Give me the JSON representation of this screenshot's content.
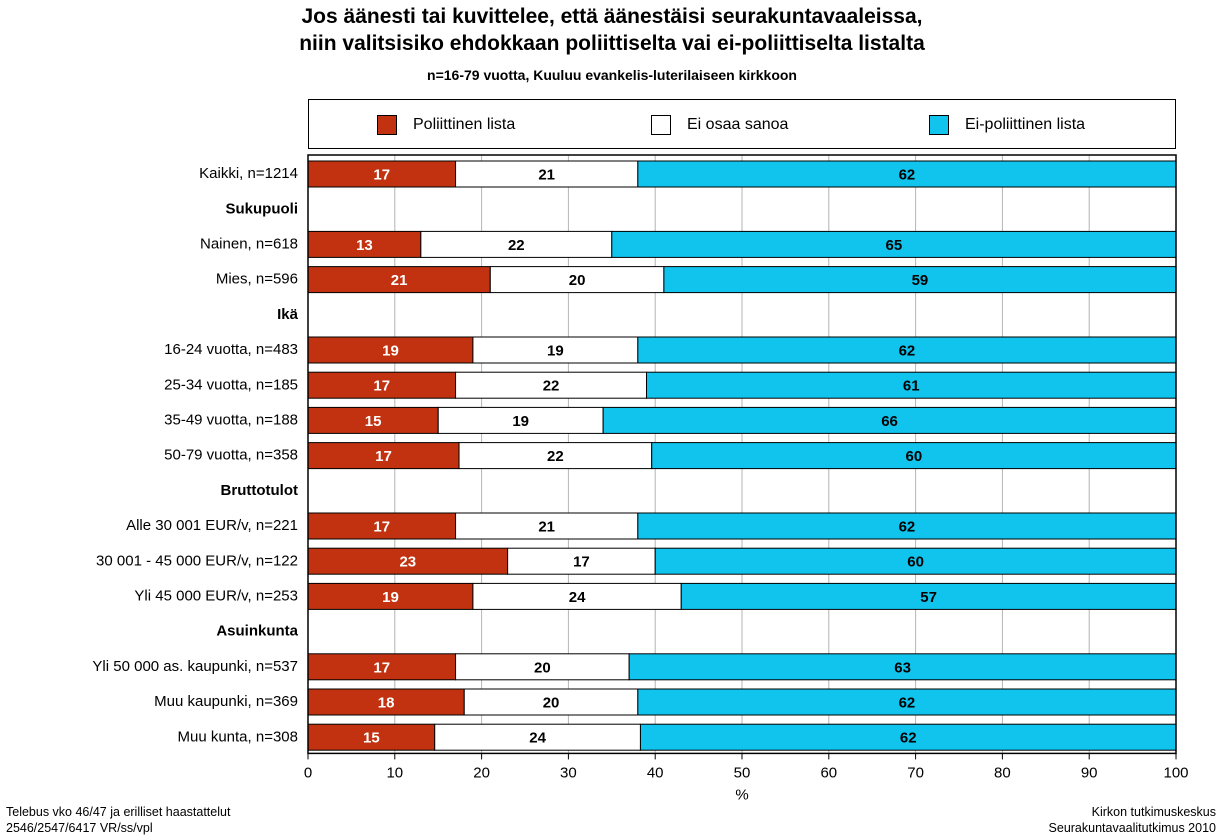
{
  "title_line1": "Jos äänesti tai kuvittelee, että äänestäisi seurakuntavaaleissa,",
  "title_line2": "niin valitsisiko ehdokkaan poliittiselta vai ei-poliittiselta listalta",
  "subtitle": "n=16-79 vuotta, Kuuluu evankelis-luterilaiseen kirkkoon",
  "footer_left": [
    "Telebus vko 46/47 ja erilliset haastattelut",
    "2546/2547/6417 VR/ss/vpl"
  ],
  "footer_right": [
    "Kirkon tutkimuskeskus",
    "Seurakuntavaalitutkimus 2010"
  ],
  "chart_data": {
    "type": "bar",
    "orientation": "horizontal",
    "stacked": true,
    "xlabel": "%",
    "xlim": [
      0,
      100
    ],
    "xticks": [
      0,
      10,
      20,
      30,
      40,
      50,
      60,
      70,
      80,
      90,
      100
    ],
    "grid": "vertical",
    "legend_position": "top",
    "series": [
      {
        "name": "Poliittinen lista",
        "color": "#c23210",
        "label_color": "#ffffff"
      },
      {
        "name": "Ei osaa sanoa",
        "color": "#ffffff",
        "label_color": "#000000"
      },
      {
        "name": "Ei-poliittinen lista",
        "color": "#11c4ee",
        "label_color": "#000000"
      }
    ],
    "rows": [
      {
        "label": "Kaikki, n=1214",
        "values": [
          17,
          21,
          62
        ],
        "ends": [
          17,
          38
        ]
      },
      {
        "label": "Sukupuoli",
        "header": true
      },
      {
        "label": "Nainen, n=618",
        "values": [
          13,
          22,
          65
        ],
        "ends": [
          13,
          35
        ]
      },
      {
        "label": "Mies, n=596",
        "values": [
          21,
          20,
          59
        ],
        "ends": [
          21,
          41
        ]
      },
      {
        "label": "Ikä",
        "header": true
      },
      {
        "label": "16-24 vuotta, n=483",
        "values": [
          19,
          19,
          62
        ],
        "ends": [
          19,
          38
        ]
      },
      {
        "label": "25-34 vuotta, n=185",
        "values": [
          17,
          22,
          61
        ],
        "ends": [
          17,
          39
        ]
      },
      {
        "label": "35-49 vuotta, n=188",
        "values": [
          15,
          19,
          66
        ],
        "ends": [
          15,
          34
        ]
      },
      {
        "label": "50-79 vuotta, n=358",
        "values": [
          17,
          22,
          60
        ],
        "ends": [
          17.4,
          39.6
        ]
      },
      {
        "label": "Bruttotulot",
        "header": true
      },
      {
        "label": "Alle 30 001 EUR/v, n=221",
        "values": [
          17,
          21,
          62
        ],
        "ends": [
          17,
          38
        ]
      },
      {
        "label": "30 001 - 45 000 EUR/v, n=122",
        "values": [
          23,
          17,
          60
        ],
        "ends": [
          23,
          40
        ]
      },
      {
        "label": "Yli 45 000 EUR/v, n=253",
        "values": [
          19,
          24,
          57
        ],
        "ends": [
          19,
          43
        ]
      },
      {
        "label": "Asuinkunta",
        "header": true
      },
      {
        "label": "Yli 50 000 as. kaupunki, n=537",
        "values": [
          17,
          20,
          63
        ],
        "ends": [
          17,
          37
        ]
      },
      {
        "label": "Muu kaupunki, n=369",
        "values": [
          18,
          20,
          62
        ],
        "ends": [
          18,
          38
        ]
      },
      {
        "label": "Muu kunta, n=308",
        "values": [
          15,
          24,
          62
        ],
        "ends": [
          14.6,
          38.3
        ]
      }
    ]
  }
}
